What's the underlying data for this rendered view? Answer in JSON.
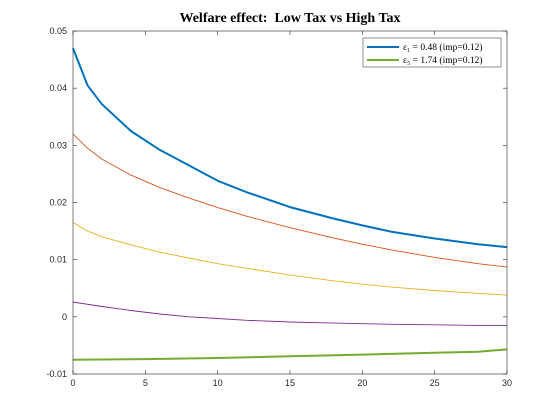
{
  "chart_data": {
    "type": "line",
    "title": "Welfare effect:  Low Tax vs High Tax",
    "xlabel": "",
    "ylabel": "",
    "xlim": [
      0,
      30
    ],
    "ylim": [
      -0.01,
      0.05
    ],
    "xticks": [
      0,
      5,
      10,
      15,
      20,
      25,
      30
    ],
    "yticks": [
      -0.01,
      0,
      0.01,
      0.02,
      0.03,
      0.04,
      0.05
    ],
    "xtick_labels": [
      "0",
      "5",
      "10",
      "15",
      "20",
      "25",
      "30"
    ],
    "ytick_labels": [
      "-0.01",
      "0",
      "0.01",
      "0.02",
      "0.03",
      "0.04",
      "0.05"
    ],
    "grid": false,
    "legend_position": "top-right",
    "series": [
      {
        "legend": "ε₁ = 0.48 (imp=0.12)",
        "color": "#0072BD",
        "width": "thick",
        "x": [
          0,
          1,
          2,
          4,
          6,
          8,
          10,
          12,
          15,
          18,
          20,
          22,
          25,
          28,
          30
        ],
        "y": [
          0.047,
          0.0405,
          0.0372,
          0.0325,
          0.0292,
          0.0265,
          0.0238,
          0.0218,
          0.0192,
          0.0172,
          0.016,
          0.0149,
          0.0137,
          0.0127,
          0.0122
        ]
      },
      {
        "color": "#D95319",
        "width": "thin",
        "x": [
          0,
          1,
          2,
          4,
          6,
          8,
          10,
          12,
          15,
          18,
          20,
          22,
          25,
          28,
          30
        ],
        "y": [
          0.032,
          0.0295,
          0.0276,
          0.0248,
          0.0226,
          0.0208,
          0.0191,
          0.0176,
          0.0156,
          0.0138,
          0.0127,
          0.0117,
          0.0104,
          0.0093,
          0.0087
        ]
      },
      {
        "color": "#EDB120",
        "width": "thin",
        "x": [
          0,
          1,
          2,
          4,
          6,
          8,
          10,
          12,
          15,
          18,
          20,
          22,
          25,
          28,
          30
        ],
        "y": [
          0.0165,
          0.015,
          0.014,
          0.0126,
          0.0113,
          0.0103,
          0.0093,
          0.0085,
          0.0073,
          0.0063,
          0.0057,
          0.0052,
          0.0046,
          0.0041,
          0.0038
        ]
      },
      {
        "color": "#7E2F8E",
        "width": "thin",
        "x": [
          0,
          2,
          4,
          6,
          8,
          10,
          12,
          15,
          18,
          20,
          22,
          25,
          28,
          30
        ],
        "y": [
          0.0026,
          0.0018,
          0.0011,
          0.0005,
          0.0,
          -0.0003,
          -0.0006,
          -0.0009,
          -0.0011,
          -0.0012,
          -0.0013,
          -0.0014,
          -0.0015,
          -0.0015
        ]
      },
      {
        "legend": "ε₅ = 1.74 (imp=0.12)",
        "color": "#77AC30",
        "width": "thick",
        "x": [
          0,
          5,
          10,
          15,
          20,
          25,
          28,
          30
        ],
        "y": [
          -0.0075,
          -0.0074,
          -0.0072,
          -0.0069,
          -0.0066,
          -0.0063,
          -0.0061,
          -0.0057
        ]
      }
    ]
  }
}
